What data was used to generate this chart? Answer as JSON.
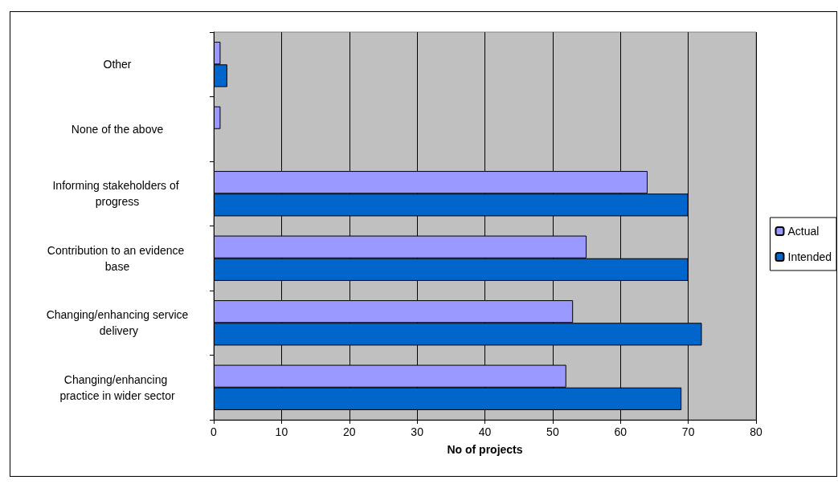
{
  "chart_data": {
    "type": "bar",
    "orientation": "horizontal",
    "xlabel": "No of projects",
    "categories": [
      "Other",
      "None of the above",
      "Informing stakeholders of progress",
      "Contribution to an evidence base",
      "Changing/enhancing service delivery",
      "Changing/enhancing practice in wider sector"
    ],
    "series": [
      {
        "name": "Actual",
        "color": "#9999ff",
        "values": [
          1,
          1,
          64,
          55,
          53,
          52
        ]
      },
      {
        "name": "Intended",
        "color": "#0066cc",
        "values": [
          2,
          null,
          70,
          70,
          72,
          69
        ]
      }
    ],
    "xlim": [
      0,
      80
    ],
    "xticks": [
      0,
      10,
      20,
      30,
      40,
      50,
      60,
      70,
      80
    ],
    "grid": "x",
    "legend": "right"
  }
}
